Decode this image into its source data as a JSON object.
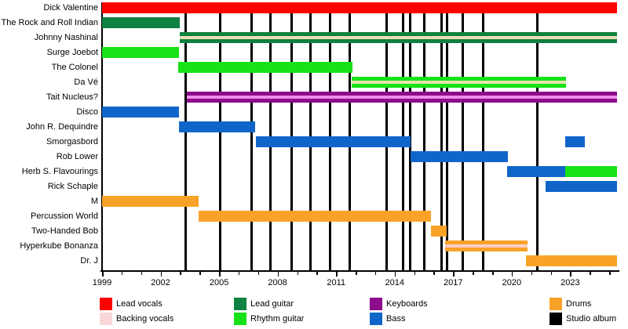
{
  "chart_data": {
    "type": "bar",
    "subtype": "horizontal-gantt-band-member-timeline",
    "title": "",
    "xlabel": "",
    "ylabel": "",
    "grid": "vertical-black-lines-mark-studio-albums",
    "legend_position": "bottom",
    "x_axis": {
      "start": 1999,
      "end": 2025.4,
      "major_tick_years": [
        1999,
        2002,
        2005,
        2008,
        2011,
        2014,
        2017,
        2020,
        2023
      ],
      "minor_tick_interval_years": 1
    },
    "members": [
      {
        "name": "Dick Valentine",
        "segments": [
          {
            "start": 1999,
            "end": 2025.4,
            "role": "Lead vocals",
            "color": "#fe0000"
          }
        ]
      },
      {
        "name": "The Rock and Roll Indian",
        "segments": [
          {
            "start": 1999,
            "end": 2003.0,
            "role": "Lead guitar",
            "color": "#0f8140"
          }
        ]
      },
      {
        "name": "Johnny Nashinal",
        "segments": [
          {
            "start": 2003.0,
            "end": 2025.4,
            "role": "Lead guitar + backing vocals",
            "color": "#0f8140",
            "stripe": "#e9dfb4"
          }
        ]
      },
      {
        "name": "Surge Joebot",
        "segments": [
          {
            "start": 1999,
            "end": 2002.95,
            "role": "Rhythm guitar",
            "color": "#17e217"
          }
        ]
      },
      {
        "name": "The Colonel",
        "segments": [
          {
            "start": 2002.9,
            "end": 2011.85,
            "role": "Rhythm guitar",
            "color": "#17e217"
          }
        ]
      },
      {
        "name": "Da Vé",
        "segments": [
          {
            "start": 2011.8,
            "end": 2022.8,
            "role": "Rhythm guitar + backing vocals",
            "color": "#17e217",
            "stripe": "#e6e2ae"
          }
        ]
      },
      {
        "name": "Tait Nucleus?",
        "segments": [
          {
            "start": 2003.35,
            "end": 2025.4,
            "role": "Keyboards + backing vocals",
            "color": "#8c0d8c",
            "stripe": "#ee8fe8"
          }
        ]
      },
      {
        "name": "Disco",
        "segments": [
          {
            "start": 1999,
            "end": 2002.95,
            "role": "Bass",
            "color": "#1066c8"
          }
        ]
      },
      {
        "name": "John R. Dequindre",
        "segments": [
          {
            "start": 2002.95,
            "end": 2006.85,
            "role": "Bass",
            "color": "#1066c8"
          }
        ]
      },
      {
        "name": "Smorgasbord",
        "segments": [
          {
            "start": 2006.9,
            "end": 2014.8,
            "role": "Bass",
            "color": "#1066c8"
          },
          {
            "start": 2022.75,
            "end": 2023.75,
            "role": "Bass",
            "color": "#1066c8"
          }
        ]
      },
      {
        "name": "Rob Lower",
        "segments": [
          {
            "start": 2014.8,
            "end": 2019.8,
            "role": "Bass",
            "color": "#1066c8"
          }
        ]
      },
      {
        "name": "Herb S. Flavourings",
        "segments": [
          {
            "start": 2019.78,
            "end": 2022.75,
            "role": "Bass",
            "color": "#1066c8"
          },
          {
            "start": 2022.75,
            "end": 2025.4,
            "role": "Rhythm guitar",
            "color": "#17e217"
          }
        ]
      },
      {
        "name": "Rick Schaple",
        "segments": [
          {
            "start": 2021.75,
            "end": 2025.4,
            "role": "Bass",
            "color": "#1066c8"
          }
        ]
      },
      {
        "name": "M",
        "segments": [
          {
            "start": 1999,
            "end": 2003.95,
            "role": "Drums",
            "color": "#f9a228"
          }
        ]
      },
      {
        "name": "Percussion World",
        "segments": [
          {
            "start": 2003.95,
            "end": 2015.85,
            "role": "Drums",
            "color": "#f9a228"
          }
        ]
      },
      {
        "name": "Two-Handed Bob",
        "segments": [
          {
            "start": 2015.85,
            "end": 2016.65,
            "role": "Drums",
            "color": "#f9a228"
          }
        ]
      },
      {
        "name": "Hyperkube Bonanza",
        "segments": [
          {
            "start": 2016.6,
            "end": 2020.8,
            "role": "Drums + backing vocals",
            "color": "#f9a228",
            "stripe": "#fecdc8"
          }
        ]
      },
      {
        "name": "Dr. J",
        "segments": [
          {
            "start": 2020.75,
            "end": 2025.4,
            "role": "Drums",
            "color": "#f9a228"
          }
        ]
      }
    ],
    "album_release_years": [
      2003.3,
      2005.05,
      2006.65,
      2007.65,
      2008.7,
      2009.7,
      2010.7,
      2011.7,
      2013.6,
      2014.45,
      2014.8,
      2015.5,
      2016.4,
      2016.7,
      2017.5,
      2018.55,
      2021.3
    ],
    "legend": [
      {
        "label": "Lead vocals",
        "color": "#fe0000"
      },
      {
        "label": "Backing vocals",
        "color": "#f7d7d7"
      },
      {
        "label": "Lead guitar",
        "color": "#0f8140"
      },
      {
        "label": "Rhythm guitar",
        "color": "#17e217"
      },
      {
        "label": "Keyboards",
        "color": "#8c0d8c"
      },
      {
        "label": "Bass",
        "color": "#1066c8"
      },
      {
        "label": "Drums",
        "color": "#f9a228"
      },
      {
        "label": "Studio album",
        "color": "#000000"
      }
    ]
  },
  "colors": {
    "background": "#ffffff",
    "axis": "#000000",
    "text": "#000000"
  }
}
